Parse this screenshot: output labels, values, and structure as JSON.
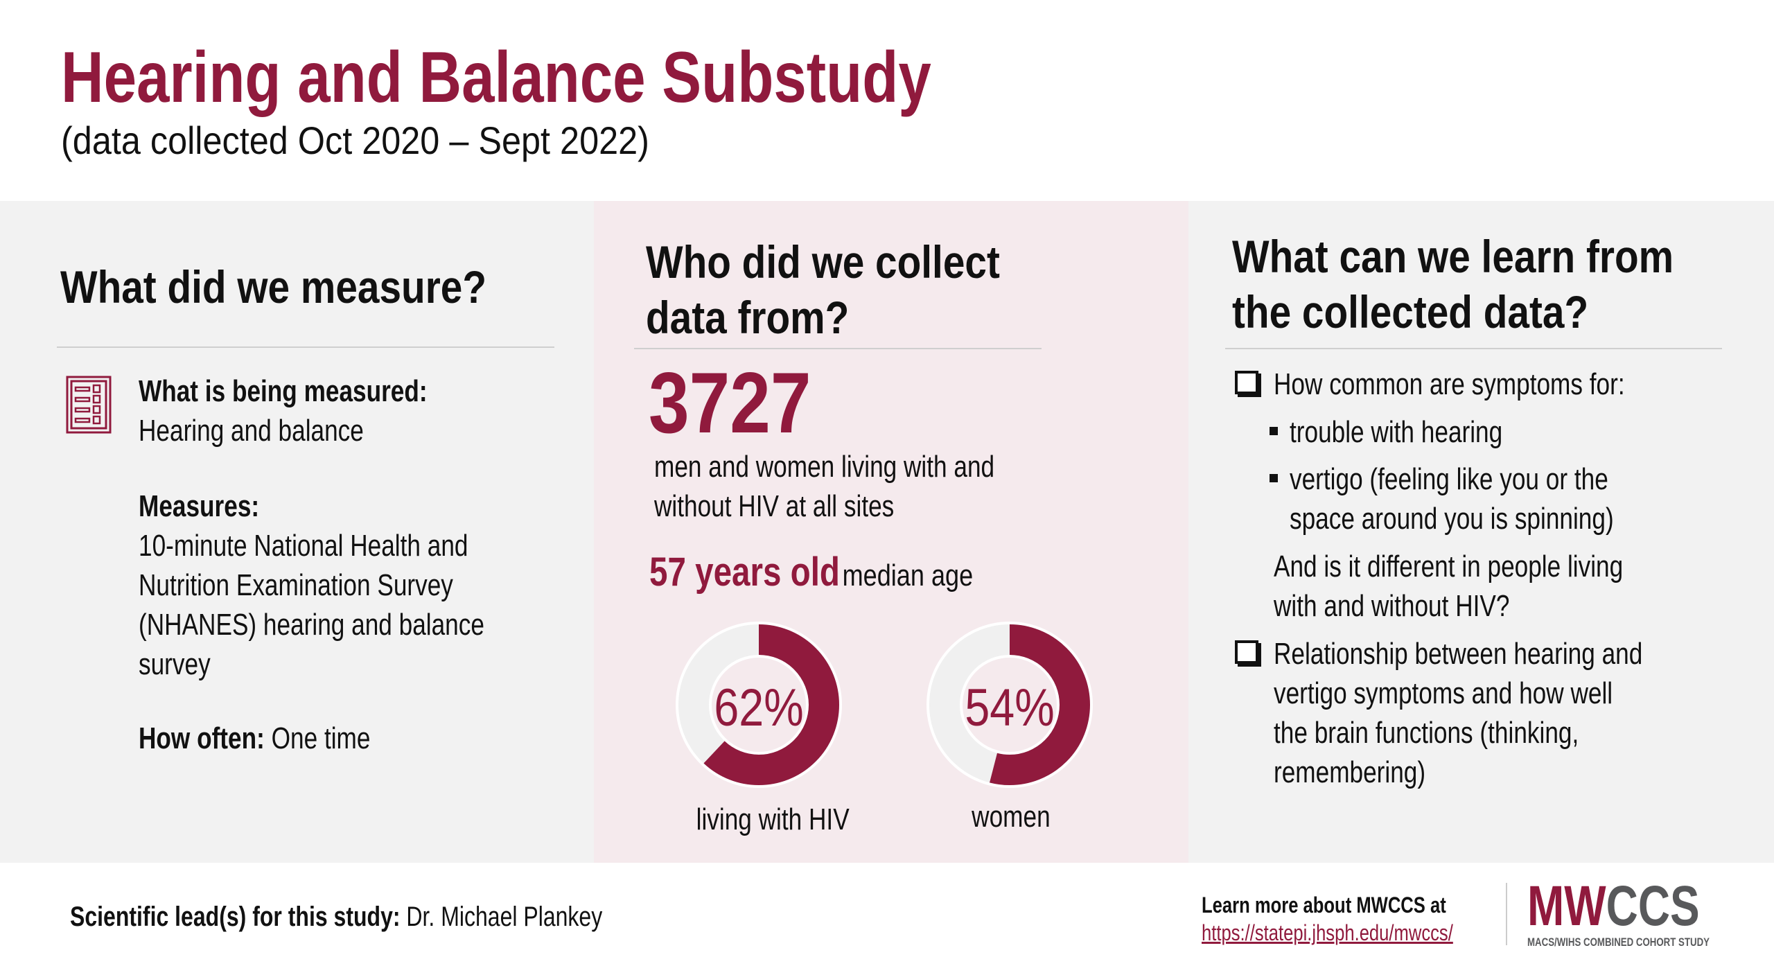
{
  "header": {
    "title": "Hearing and Balance Substudy",
    "subtitle": "(data collected Oct 2020 – Sept 2022)"
  },
  "colors": {
    "accent": "#901a3d",
    "panel_grey": "#f2f2f2",
    "panel_pink": "#f5eaed",
    "donut_track": "#f0f0f0"
  },
  "measure": {
    "heading": "What did we measure?",
    "icon": "checklist-icon",
    "what_label": "What is being measured:",
    "what_value": "Hearing and balance",
    "measures_label": "Measures:",
    "measures_lines": [
      "10-minute National Health and",
      "Nutrition Examination Survey",
      "(NHANES) hearing and balance",
      "survey"
    ],
    "how_often_label": "How often:",
    "how_often_value": "One time"
  },
  "who": {
    "heading_lines": [
      "Who did we collect",
      "data from?"
    ],
    "count": "3727",
    "count_desc_lines": [
      "men and women living with and",
      "without HIV at all sites"
    ],
    "age_value": "57 years old",
    "age_label": "median age",
    "donuts": [
      {
        "percent": 62,
        "label_text": "62%",
        "caption": "living with HIV"
      },
      {
        "percent": 54,
        "label_text": "54%",
        "caption": "women"
      }
    ]
  },
  "learn": {
    "heading_lines": [
      "What can we learn from",
      "the collected data?"
    ],
    "item1": "How common are symptoms for:",
    "bullet1": "trouble with hearing",
    "bullet2_lines": [
      "vertigo (feeling like you or the",
      "space around you is spinning)"
    ],
    "followup_lines": [
      "And is it different in people living",
      "with and without HIV?"
    ],
    "item2_lines": [
      "Relationship between hearing and",
      "vertigo symptoms and how well",
      "the brain functions (thinking,",
      "remembering)"
    ]
  },
  "footer": {
    "lead_label": "Scientific lead(s) for this study:",
    "lead_name": "Dr. Michael Plankey",
    "learn_more": "Learn more about MWCCS at",
    "url": "https://statepi.jhsph.edu/mwccs/",
    "logo_text": "MWCCS",
    "logo_subtitle": "MACS/WIHS COMBINED COHORT STUDY"
  }
}
